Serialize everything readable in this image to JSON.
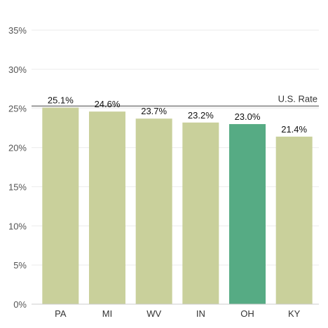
{
  "chart_data": {
    "type": "bar",
    "categories": [
      "PA",
      "MI",
      "WV",
      "IN",
      "OH",
      "KY"
    ],
    "values": [
      25.1,
      24.6,
      23.7,
      23.2,
      23.0,
      21.4
    ],
    "data_labels": [
      "25.1%",
      "24.6%",
      "23.7%",
      "23.2%",
      "23.0%",
      "21.4%"
    ],
    "highlight_category": "OH",
    "ylim": [
      0,
      35
    ],
    "yticks": [
      0,
      5,
      10,
      15,
      20,
      25,
      30,
      35
    ],
    "ytick_labels": [
      "0%",
      "5%",
      "10%",
      "15%",
      "20%",
      "25%",
      "30%",
      "35%"
    ],
    "reference_line": {
      "value": 25.3,
      "label": "U.S. Rate"
    },
    "grid": true,
    "title": "",
    "xlabel": "",
    "ylabel": "",
    "colors": {
      "bar": "#c9d09b",
      "highlight": "#56ab84",
      "reference": "#999999",
      "grid": "#ebebeb"
    }
  }
}
